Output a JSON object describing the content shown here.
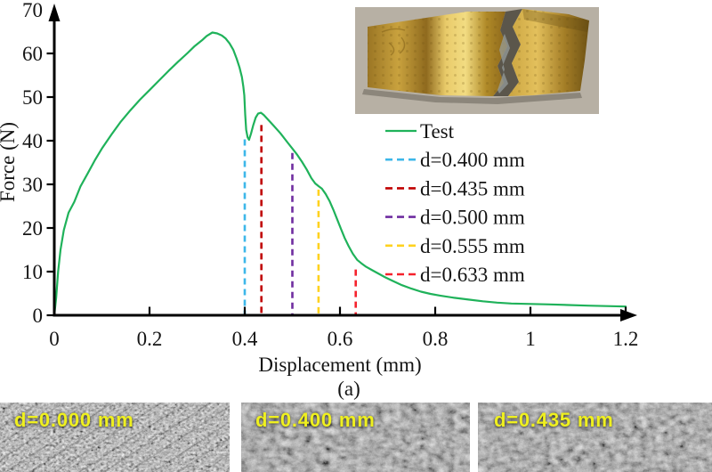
{
  "figure": {
    "panel_label": "(a)"
  },
  "chart_data": {
    "type": "line",
    "title": "",
    "xlabel": "Displacement (mm)",
    "ylabel": "Force (N)",
    "xlim": [
      0,
      1.2
    ],
    "ylim": [
      0,
      70
    ],
    "x_ticks": [
      0,
      0.2,
      0.4,
      0.6,
      0.8,
      1,
      1.2
    ],
    "x_tick_labels": [
      "0",
      "0.2",
      "0.4",
      "0.6",
      "0.8",
      "1",
      "1.2"
    ],
    "y_ticks": [
      0,
      10,
      20,
      30,
      40,
      50,
      60,
      70
    ],
    "grid": false,
    "legend_position": "right-center",
    "series": [
      {
        "name": "Test",
        "color": "#1fb25a",
        "style": "solid",
        "points": [
          [
            0,
            0
          ],
          [
            0.004,
            4
          ],
          [
            0.008,
            10
          ],
          [
            0.013,
            15
          ],
          [
            0.02,
            19.5
          ],
          [
            0.03,
            23.5
          ],
          [
            0.042,
            26
          ],
          [
            0.055,
            29.5
          ],
          [
            0.07,
            32.5
          ],
          [
            0.085,
            35.5
          ],
          [
            0.1,
            38.2
          ],
          [
            0.12,
            41.4
          ],
          [
            0.14,
            44.4
          ],
          [
            0.16,
            47
          ],
          [
            0.18,
            49.4
          ],
          [
            0.2,
            51.6
          ],
          [
            0.22,
            53.8
          ],
          [
            0.24,
            56
          ],
          [
            0.26,
            58.1
          ],
          [
            0.28,
            60.1
          ],
          [
            0.295,
            61.7
          ],
          [
            0.31,
            63
          ],
          [
            0.32,
            64
          ],
          [
            0.332,
            64.8
          ],
          [
            0.342,
            64.6
          ],
          [
            0.352,
            64.1
          ],
          [
            0.36,
            63.4
          ],
          [
            0.368,
            62.3
          ],
          [
            0.376,
            60.8
          ],
          [
            0.383,
            58.8
          ],
          [
            0.389,
            56.8
          ],
          [
            0.394,
            54.6
          ],
          [
            0.397,
            52.4
          ],
          [
            0.399,
            50.4
          ],
          [
            0.401,
            46
          ],
          [
            0.403,
            42.5
          ],
          [
            0.406,
            40.8
          ],
          [
            0.409,
            40.2
          ],
          [
            0.413,
            41.6
          ],
          [
            0.418,
            43.6
          ],
          [
            0.423,
            45.3
          ],
          [
            0.428,
            46.2
          ],
          [
            0.434,
            46.4
          ],
          [
            0.44,
            45.9
          ],
          [
            0.45,
            44.7
          ],
          [
            0.46,
            43.5
          ],
          [
            0.475,
            41.7
          ],
          [
            0.49,
            39.6
          ],
          [
            0.5,
            38.2
          ],
          [
            0.51,
            36.8
          ],
          [
            0.52,
            35.2
          ],
          [
            0.53,
            33.4
          ],
          [
            0.54,
            31.4
          ],
          [
            0.548,
            30.2
          ],
          [
            0.555,
            29.6
          ],
          [
            0.562,
            29
          ],
          [
            0.57,
            27.8
          ],
          [
            0.578,
            26.2
          ],
          [
            0.586,
            24.2
          ],
          [
            0.594,
            22
          ],
          [
            0.602,
            19.8
          ],
          [
            0.61,
            17.7
          ],
          [
            0.618,
            15.9
          ],
          [
            0.627,
            14.1
          ],
          [
            0.636,
            12.7
          ],
          [
            0.645,
            11.9
          ],
          [
            0.655,
            11.1
          ],
          [
            0.668,
            10.3
          ],
          [
            0.68,
            9.6
          ],
          [
            0.695,
            8.7
          ],
          [
            0.71,
            7.9
          ],
          [
            0.73,
            6.9
          ],
          [
            0.75,
            6.1
          ],
          [
            0.77,
            5.4
          ],
          [
            0.79,
            4.9
          ],
          [
            0.81,
            4.5
          ],
          [
            0.84,
            4
          ],
          [
            0.87,
            3.6
          ],
          [
            0.9,
            3.2
          ],
          [
            0.93,
            2.9
          ],
          [
            0.96,
            2.7
          ],
          [
            1,
            2.6
          ],
          [
            1.04,
            2.5
          ],
          [
            1.08,
            2.35
          ],
          [
            1.12,
            2.2
          ],
          [
            1.16,
            2.1
          ],
          [
            1.2,
            2
          ]
        ]
      }
    ],
    "vlines": [
      {
        "label": "d=0.400 mm",
        "x": 0.4,
        "force_top": 40.3,
        "color": "#3db7e9",
        "style": "dashed"
      },
      {
        "label": "d=0.435 mm",
        "x": 0.435,
        "force_top": 43.6,
        "color": "#c00000",
        "style": "dashed"
      },
      {
        "label": "d=0.500 mm",
        "x": 0.5,
        "force_top": 37.2,
        "color": "#6f2da0",
        "style": "dashed"
      },
      {
        "label": "d=0.555 mm",
        "x": 0.555,
        "force_top": 28.8,
        "color": "#ffd21f",
        "style": "dashed"
      },
      {
        "label": "d=0.633 mm",
        "x": 0.633,
        "force_top": 10.5,
        "color": "#f5222d",
        "style": "dashed"
      }
    ]
  },
  "inset_photo": {
    "description": "Photograph of fractured gold-coated specimen strip torn in two",
    "background_color": "#b7b0a4",
    "foil_color": "#c9a23e"
  },
  "micrographs": [
    {
      "label": "d=0.000 mm"
    },
    {
      "label": "d=0.400 mm"
    },
    {
      "label": "d=0.435 mm"
    }
  ],
  "text_color": "#141414",
  "micrograph_label_color": "#eff01f"
}
